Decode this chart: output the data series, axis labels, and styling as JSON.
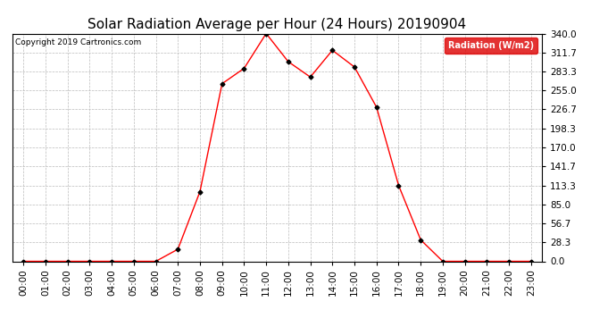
{
  "title": "Solar Radiation Average per Hour (24 Hours) 20190904",
  "copyright_text": "Copyright 2019 Cartronics.com",
  "legend_label": "Radiation (W/m2)",
  "hours": [
    "00:00",
    "01:00",
    "02:00",
    "03:00",
    "04:00",
    "05:00",
    "06:00",
    "07:00",
    "08:00",
    "09:00",
    "10:00",
    "11:00",
    "12:00",
    "13:00",
    "14:00",
    "15:00",
    "16:00",
    "17:00",
    "18:00",
    "19:00",
    "20:00",
    "21:00",
    "22:00",
    "23:00"
  ],
  "values": [
    0.0,
    0.0,
    0.0,
    0.0,
    0.0,
    0.0,
    0.0,
    18.0,
    104.0,
    265.0,
    288.0,
    340.0,
    298.0,
    275.0,
    315.0,
    290.0,
    230.0,
    113.3,
    32.0,
    0.0,
    0.0,
    0.0,
    0.0,
    0.0
  ],
  "line_color": "red",
  "marker_color": "black",
  "bg_color": "#ffffff",
  "grid_color": "#bbbbbb",
  "yticks": [
    0.0,
    28.3,
    56.7,
    85.0,
    113.3,
    141.7,
    170.0,
    198.3,
    226.7,
    255.0,
    283.3,
    311.7,
    340.0
  ],
  "ylim": [
    0.0,
    340.0
  ],
  "title_fontsize": 11,
  "tick_fontsize": 7.5,
  "legend_bg": "#dd0000",
  "legend_text_color": "#ffffff",
  "fig_width": 6.9,
  "fig_height": 3.75,
  "dpi": 100
}
